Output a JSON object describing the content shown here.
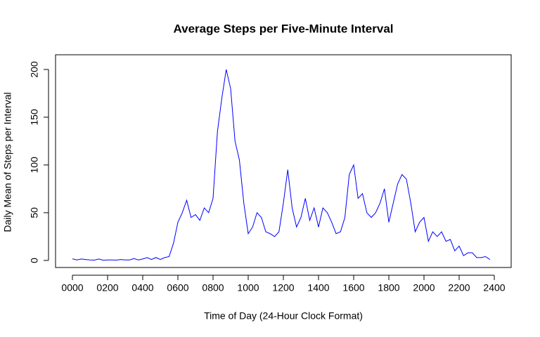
{
  "chart_data": {
    "type": "line",
    "title": "Average Steps per Five-Minute Interval",
    "x_label": "Time of Day (24-Hour Clock Format)",
    "y_label": "Daily Mean of Steps per Interval",
    "x": [
      0,
      25,
      50,
      75,
      100,
      125,
      150,
      175,
      200,
      225,
      250,
      275,
      300,
      325,
      350,
      375,
      400,
      425,
      450,
      475,
      500,
      525,
      550,
      575,
      600,
      625,
      650,
      675,
      700,
      725,
      750,
      775,
      800,
      825,
      850,
      875,
      900,
      925,
      950,
      975,
      1000,
      1025,
      1050,
      1075,
      1100,
      1125,
      1150,
      1175,
      1200,
      1225,
      1250,
      1275,
      1300,
      1325,
      1350,
      1375,
      1400,
      1425,
      1450,
      1475,
      1500,
      1525,
      1550,
      1575,
      1600,
      1625,
      1650,
      1675,
      1700,
      1725,
      1750,
      1775,
      1800,
      1825,
      1850,
      1875,
      1900,
      1925,
      1950,
      1975,
      2000,
      2025,
      2050,
      2075,
      2100,
      2125,
      2150,
      2175,
      2200,
      2225,
      2250,
      2275,
      2300,
      2325,
      2350,
      2375
    ],
    "series": [
      {
        "name": "Average steps",
        "color": "#0000ff",
        "values": [
          1.7,
          0.5,
          1.5,
          1,
          0.5,
          0.3,
          1.5,
          0.2,
          0.5,
          0.5,
          0.3,
          1,
          0.5,
          0.5,
          2,
          0.5,
          1.5,
          3,
          1,
          3,
          1,
          3,
          4,
          18,
          40,
          50,
          63,
          45,
          48,
          42,
          55,
          50,
          65,
          135,
          170,
          200,
          180,
          125,
          105,
          60,
          28,
          35,
          50,
          45,
          30,
          28,
          25,
          30,
          60,
          95,
          55,
          35,
          45,
          65,
          42,
          55,
          35,
          55,
          50,
          40,
          28,
          30,
          45,
          90,
          100,
          65,
          70,
          50,
          45,
          50,
          60,
          75,
          40,
          60,
          80,
          90,
          85,
          60,
          30,
          40,
          45,
          20,
          30,
          25,
          30,
          20,
          22,
          10,
          15,
          5,
          8,
          8,
          3,
          3,
          4,
          1
        ]
      }
    ],
    "xlim": [
      -96,
      2496
    ],
    "ylim": [
      -7.4,
      215.4
    ],
    "xticks": [
      {
        "value": 0,
        "label": "0000"
      },
      {
        "value": 200,
        "label": "0200"
      },
      {
        "value": 400,
        "label": "0400"
      },
      {
        "value": 600,
        "label": "0600"
      },
      {
        "value": 800,
        "label": "0800"
      },
      {
        "value": 1000,
        "label": "1000"
      },
      {
        "value": 1200,
        "label": "1200"
      },
      {
        "value": 1400,
        "label": "1400"
      },
      {
        "value": 1600,
        "label": "1600"
      },
      {
        "value": 1800,
        "label": "1800"
      },
      {
        "value": 2000,
        "label": "2000"
      },
      {
        "value": 2200,
        "label": "2200"
      },
      {
        "value": 2400,
        "label": "2400"
      }
    ],
    "yticks": [
      0,
      50,
      100,
      150,
      200
    ]
  }
}
